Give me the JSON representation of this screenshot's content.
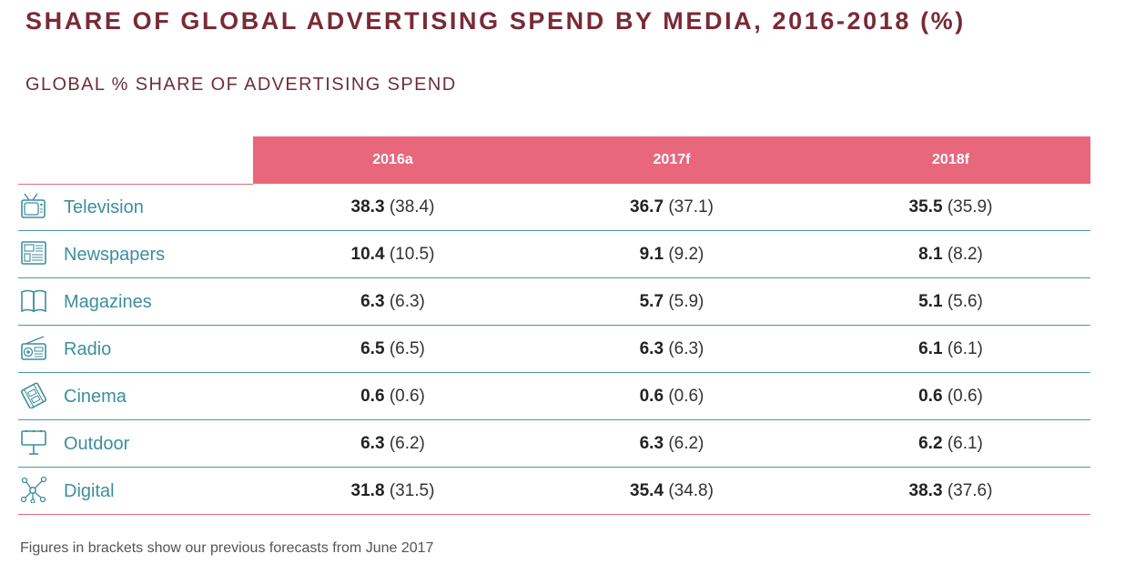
{
  "title": "SHARE OF GLOBAL ADVERTISING SPEND BY MEDIA, 2016-2018 (%)",
  "subtitle": "GLOBAL % SHARE OF ADVERTISING SPEND",
  "footnote": "Figures in brackets show our previous forecasts from June 2017",
  "colors": {
    "header_bg": "#e8677c",
    "title": "#7a2a35",
    "label": "#3d8e9c",
    "divider": "#4a9aa8"
  },
  "chart_data": {
    "type": "table",
    "title": "SHARE OF GLOBAL ADVERTISING SPEND BY MEDIA, 2016-2018 (%)",
    "subtitle": "GLOBAL % SHARE OF ADVERTISING SPEND",
    "columns": [
      "2016a",
      "2017f",
      "2018f"
    ],
    "rows": [
      {
        "media": "Television",
        "icon": "television-icon",
        "values": [
          "38.3",
          "36.7",
          "35.5"
        ],
        "previous": [
          "(38.4)",
          "(37.1)",
          "(35.9)"
        ]
      },
      {
        "media": "Newspapers",
        "icon": "newspaper-icon",
        "values": [
          "10.4",
          "9.1",
          "8.1"
        ],
        "previous": [
          "(10.5)",
          "(9.2)",
          "(8.2)"
        ]
      },
      {
        "media": "Magazines",
        "icon": "magazine-icon",
        "values": [
          "6.3",
          "5.7",
          "5.1"
        ],
        "previous": [
          "(6.3)",
          "(5.9)",
          "(5.6)"
        ]
      },
      {
        "media": "Radio",
        "icon": "radio-icon",
        "values": [
          "6.5",
          "6.3",
          "6.1"
        ],
        "previous": [
          "(6.5)",
          "(6.3)",
          "(6.1)"
        ]
      },
      {
        "media": "Cinema",
        "icon": "cinema-icon",
        "values": [
          "0.6",
          "0.6",
          "0.6"
        ],
        "previous": [
          "(0.6)",
          "(0.6)",
          "(0.6)"
        ]
      },
      {
        "media": "Outdoor",
        "icon": "billboard-icon",
        "values": [
          "6.3",
          "6.3",
          "6.2"
        ],
        "previous": [
          "(6.2)",
          "(6.2)",
          "(6.1)"
        ]
      },
      {
        "media": "Digital",
        "icon": "network-icon",
        "values": [
          "31.8",
          "35.4",
          "38.3"
        ],
        "previous": [
          "(31.5)",
          "(34.8)",
          "(37.6)"
        ]
      }
    ]
  }
}
